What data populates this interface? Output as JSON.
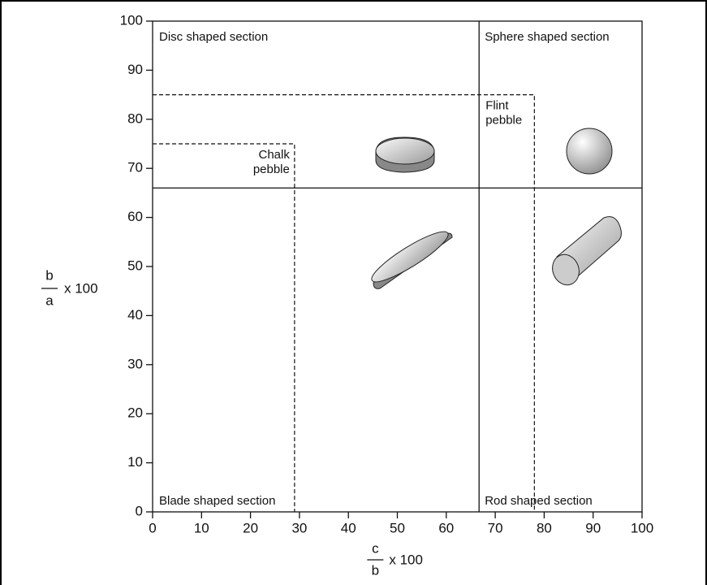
{
  "chart_data": {
    "type": "zingg",
    "xlim": [
      0,
      100
    ],
    "ylim": [
      0,
      100
    ],
    "xticks": [
      0,
      10,
      20,
      30,
      40,
      50,
      60,
      70,
      80,
      90,
      100
    ],
    "yticks": [
      0,
      10,
      20,
      30,
      40,
      50,
      60,
      70,
      80,
      90,
      100
    ],
    "xlabel": {
      "numerator": "c",
      "denominator": "b",
      "suffix": "x 100"
    },
    "ylabel": {
      "numerator": "b",
      "denominator": "a",
      "suffix": "x 100"
    },
    "dividers": {
      "x": 66.7,
      "y": 66
    },
    "regions": {
      "top_left": "Disc shaped section",
      "top_right": "Sphere shaped section",
      "bottom_left": "Blade shaped section",
      "bottom_right": "Rod shaped section"
    },
    "pebbles": [
      {
        "lines": [
          "Chalk",
          "pebble"
        ],
        "x": 29,
        "y": 75
      },
      {
        "lines": [
          "Flint",
          "pebble"
        ],
        "x": 78,
        "y": 85
      }
    ]
  }
}
